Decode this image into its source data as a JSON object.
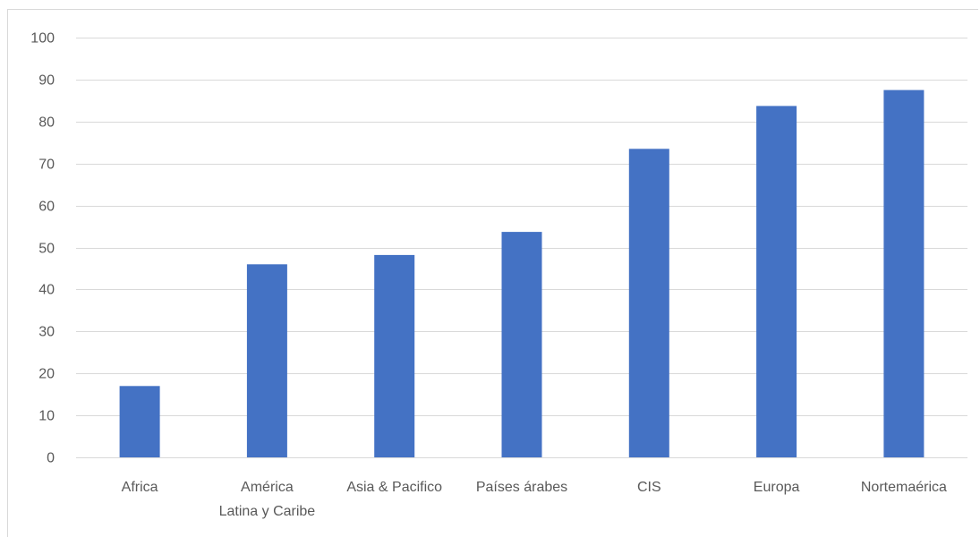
{
  "chart_data": {
    "type": "bar",
    "categories": [
      [
        "Africa"
      ],
      [
        "América",
        "Latina y Caribe"
      ],
      [
        "Asia & Pacifico"
      ],
      [
        "Países árabes"
      ],
      [
        "CIS"
      ],
      [
        "Europa"
      ],
      [
        "Nortemaérica"
      ]
    ],
    "values": [
      17,
      46,
      48.2,
      53.7,
      73.5,
      83.7,
      87.5
    ],
    "title": "",
    "xlabel": "",
    "ylabel": "",
    "ylim": [
      0,
      100
    ],
    "yticks": [
      0,
      10,
      20,
      30,
      40,
      50,
      60,
      70,
      80,
      90,
      100
    ],
    "grid": true,
    "colors": {
      "bar": "#4472c4",
      "grid": "#d9d9d9",
      "text": "#595959"
    }
  }
}
